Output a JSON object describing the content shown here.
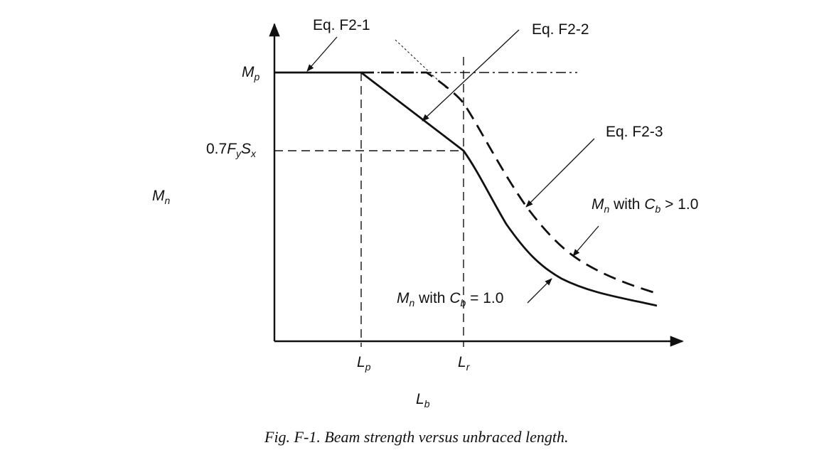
{
  "y_axis": {
    "label": {
      "main": "M",
      "sub": "n"
    },
    "ticks": {
      "mp": {
        "main": "M",
        "sub": "p"
      },
      "fysx": {
        "prefix": "0.7",
        "f": "F",
        "f_sub": "y",
        "s": "S",
        "s_sub": "x"
      }
    }
  },
  "x_axis": {
    "label": {
      "main": "L",
      "sub": "b"
    },
    "ticks": {
      "lp": {
        "main": "L",
        "sub": "p"
      },
      "lr": {
        "main": "L",
        "sub": "r"
      }
    }
  },
  "annotations": {
    "eq1": "Eq. F2-1",
    "eq2": "Eq. F2-2",
    "eq3": "Eq. F2-3",
    "cb_gt": {
      "m": "M",
      "m_sub": "n",
      "mid": " with ",
      "c": "C",
      "c_sub": "b",
      "rel": " > 1.0"
    },
    "cb_eq": {
      "m": "M",
      "m_sub": "n",
      "mid": " with ",
      "c": "C",
      "c_sub": "b",
      "rel": " = 1.0"
    }
  },
  "caption": "Fig. F-1. Beam strength versus unbraced length.",
  "colors": {
    "ink": "#111111",
    "background": "#ffffff"
  }
}
